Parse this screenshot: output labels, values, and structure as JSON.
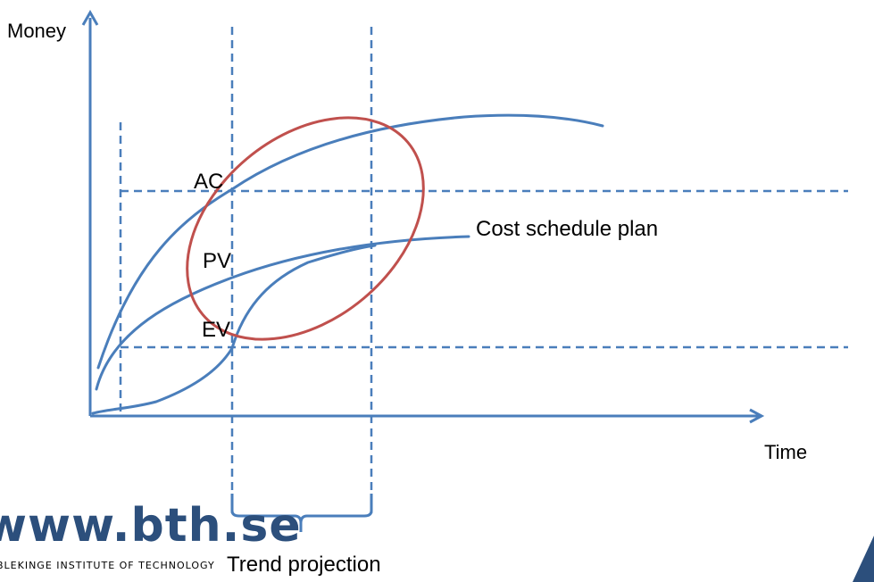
{
  "diagram": {
    "y_axis_label": "Money",
    "x_axis_label": "Time",
    "labels": {
      "ac": "AC",
      "pv": "PV",
      "ev": "EV",
      "cost_schedule_plan": "Cost schedule plan",
      "trend_projection": "Trend projection"
    }
  },
  "footer": {
    "logo_url_text": "www.bth.se",
    "institute_text": "BLEKINGE INSTITUTE OF TECHNOLOGY"
  },
  "colors": {
    "curve": "#4a7ebb",
    "ellipse": "#c0504d",
    "text": "#000000",
    "logo": "#2c4f7c"
  }
}
